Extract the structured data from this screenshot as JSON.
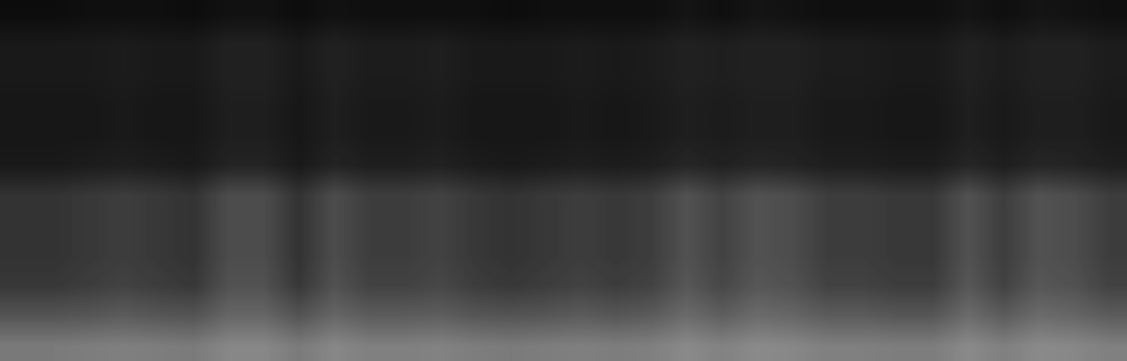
{
  "chart_data": {
    "type": "heatmap",
    "tick_labels": false,
    "color_range": [
      0,
      1
    ],
    "cells": [
      [
        0.05,
        0.05,
        0.06,
        0.06,
        0.06,
        0.05,
        0.07,
        0.07,
        0.05,
        0.07,
        0.06,
        0.06,
        0.06,
        0.06,
        0.05,
        0.06,
        0.06,
        0.06,
        0.06,
        0.08,
        0.06,
        0.08,
        0.07,
        0.06,
        0.06,
        0.06,
        0.06,
        0.08,
        0.06,
        0.08,
        0.07,
        0.06
      ],
      [
        0.1,
        0.1,
        0.1,
        0.11,
        0.1,
        0.1,
        0.13,
        0.13,
        0.1,
        0.13,
        0.11,
        0.11,
        0.12,
        0.1,
        0.1,
        0.1,
        0.11,
        0.1,
        0.11,
        0.13,
        0.12,
        0.13,
        0.13,
        0.11,
        0.11,
        0.1,
        0.1,
        0.13,
        0.11,
        0.13,
        0.13,
        0.11
      ],
      [
        0.1,
        0.1,
        0.1,
        0.11,
        0.1,
        0.1,
        0.13,
        0.13,
        0.1,
        0.13,
        0.11,
        0.11,
        0.12,
        0.1,
        0.1,
        0.1,
        0.11,
        0.1,
        0.11,
        0.13,
        0.12,
        0.13,
        0.13,
        0.11,
        0.11,
        0.1,
        0.1,
        0.13,
        0.11,
        0.13,
        0.13,
        0.11
      ],
      [
        0.09,
        0.09,
        0.09,
        0.1,
        0.09,
        0.09,
        0.12,
        0.12,
        0.09,
        0.12,
        0.1,
        0.1,
        0.11,
        0.09,
        0.09,
        0.09,
        0.1,
        0.09,
        0.1,
        0.12,
        0.11,
        0.12,
        0.12,
        0.1,
        0.1,
        0.09,
        0.09,
        0.12,
        0.1,
        0.12,
        0.12,
        0.1
      ],
      [
        0.09,
        0.09,
        0.09,
        0.1,
        0.09,
        0.09,
        0.12,
        0.12,
        0.09,
        0.12,
        0.1,
        0.1,
        0.11,
        0.09,
        0.09,
        0.09,
        0.1,
        0.09,
        0.1,
        0.12,
        0.11,
        0.12,
        0.12,
        0.1,
        0.1,
        0.09,
        0.09,
        0.12,
        0.1,
        0.12,
        0.12,
        0.1
      ],
      [
        0.1,
        0.1,
        0.11,
        0.12,
        0.11,
        0.1,
        0.14,
        0.14,
        0.1,
        0.14,
        0.12,
        0.12,
        0.13,
        0.11,
        0.1,
        0.11,
        0.12,
        0.11,
        0.12,
        0.15,
        0.13,
        0.15,
        0.14,
        0.12,
        0.12,
        0.11,
        0.11,
        0.15,
        0.12,
        0.15,
        0.14,
        0.12
      ],
      [
        0.2,
        0.2,
        0.22,
        0.24,
        0.22,
        0.2,
        0.3,
        0.3,
        0.2,
        0.3,
        0.24,
        0.24,
        0.26,
        0.22,
        0.2,
        0.22,
        0.24,
        0.22,
        0.24,
        0.32,
        0.26,
        0.32,
        0.3,
        0.24,
        0.24,
        0.22,
        0.22,
        0.32,
        0.24,
        0.32,
        0.3,
        0.24
      ],
      [
        0.2,
        0.2,
        0.22,
        0.24,
        0.22,
        0.2,
        0.3,
        0.3,
        0.2,
        0.3,
        0.24,
        0.24,
        0.26,
        0.22,
        0.2,
        0.22,
        0.24,
        0.22,
        0.24,
        0.32,
        0.26,
        0.32,
        0.3,
        0.24,
        0.24,
        0.22,
        0.22,
        0.32,
        0.24,
        0.32,
        0.3,
        0.24
      ],
      [
        0.2,
        0.2,
        0.22,
        0.24,
        0.22,
        0.2,
        0.3,
        0.3,
        0.2,
        0.3,
        0.24,
        0.24,
        0.26,
        0.22,
        0.2,
        0.22,
        0.24,
        0.22,
        0.24,
        0.32,
        0.26,
        0.32,
        0.3,
        0.24,
        0.24,
        0.22,
        0.22,
        0.32,
        0.24,
        0.32,
        0.3,
        0.24
      ],
      [
        0.22,
        0.22,
        0.24,
        0.26,
        0.24,
        0.22,
        0.32,
        0.32,
        0.22,
        0.32,
        0.26,
        0.26,
        0.28,
        0.24,
        0.22,
        0.24,
        0.26,
        0.24,
        0.26,
        0.34,
        0.28,
        0.34,
        0.32,
        0.26,
        0.26,
        0.24,
        0.24,
        0.34,
        0.26,
        0.34,
        0.32,
        0.26
      ],
      [
        0.33,
        0.33,
        0.34,
        0.36,
        0.34,
        0.33,
        0.4,
        0.4,
        0.33,
        0.4,
        0.36,
        0.36,
        0.37,
        0.34,
        0.33,
        0.34,
        0.36,
        0.34,
        0.36,
        0.42,
        0.37,
        0.42,
        0.4,
        0.36,
        0.36,
        0.34,
        0.34,
        0.42,
        0.36,
        0.42,
        0.4,
        0.36
      ],
      [
        0.48,
        0.48,
        0.49,
        0.5,
        0.49,
        0.48,
        0.53,
        0.53,
        0.48,
        0.53,
        0.5,
        0.5,
        0.51,
        0.49,
        0.48,
        0.49,
        0.5,
        0.49,
        0.5,
        0.54,
        0.51,
        0.54,
        0.53,
        0.5,
        0.5,
        0.49,
        0.49,
        0.54,
        0.5,
        0.54,
        0.53,
        0.5
      ]
    ]
  }
}
